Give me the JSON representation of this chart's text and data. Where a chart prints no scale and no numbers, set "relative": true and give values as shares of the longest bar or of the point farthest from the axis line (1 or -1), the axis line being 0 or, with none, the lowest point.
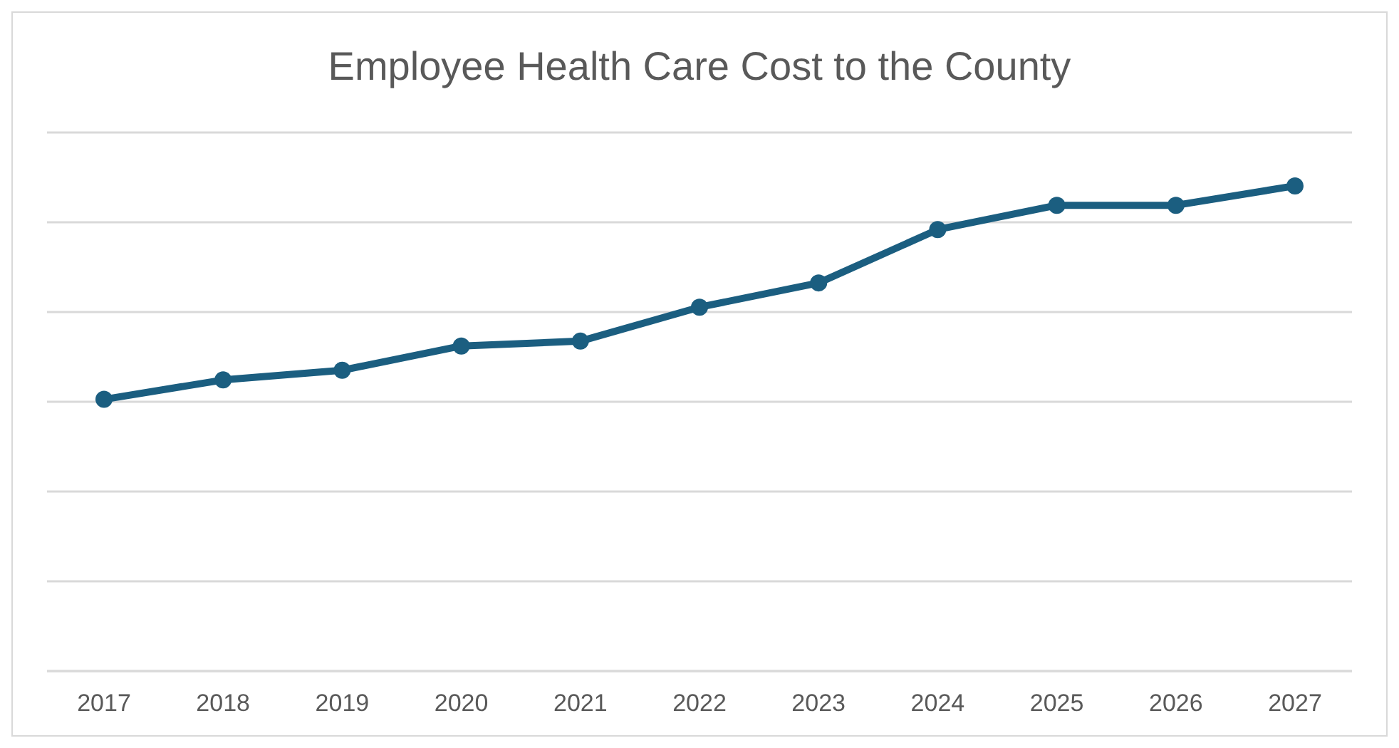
{
  "chart_data": {
    "type": "line",
    "title": "Employee Health Care Cost to the County",
    "categories": [
      "2017",
      "2018",
      "2019",
      "2020",
      "2021",
      "2022",
      "2023",
      "2024",
      "2025",
      "2026",
      "2027"
    ],
    "series": [
      {
        "color": "#1b5e80",
        "values": [
          0.56,
          0.6,
          0.62,
          0.67,
          0.68,
          0.75,
          0.8,
          0.91,
          0.96,
          0.96,
          1
        ]
      }
    ],
    "relative": true,
    "grid": "y",
    "marker": "circle",
    "line_style": "solid",
    "legend": false
  }
}
